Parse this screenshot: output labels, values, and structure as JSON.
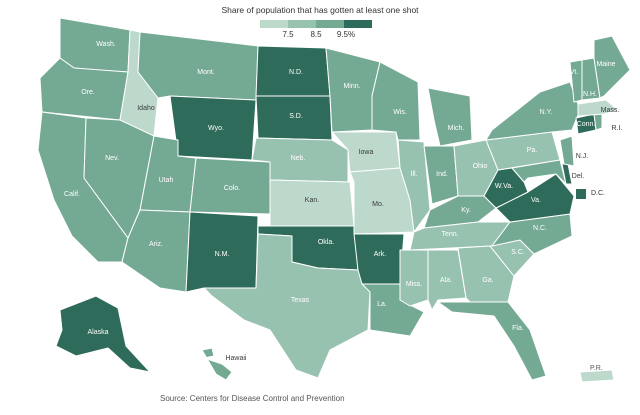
{
  "legend": {
    "title": "Share of population that has gotten at least one shot",
    "ticks": [
      "7.5",
      "8.5",
      "9.5%"
    ]
  },
  "source": "Source: Centers for Disease Control and Prevention",
  "colors": {
    "light": "#bcd9cc",
    "mid_light": "#98c2b0",
    "mid": "#74a993",
    "dark": "#2f6b5a",
    "border": "#ffffff"
  },
  "states": [
    {
      "abbr": "Wash.",
      "level": "mid"
    },
    {
      "abbr": "Ore.",
      "level": "mid"
    },
    {
      "abbr": "Calif.",
      "level": "mid"
    },
    {
      "abbr": "Idaho",
      "level": "light"
    },
    {
      "abbr": "Nev.",
      "level": "mid"
    },
    {
      "abbr": "Mont.",
      "level": "mid"
    },
    {
      "abbr": "Wyo.",
      "level": "dark"
    },
    {
      "abbr": "Utah",
      "level": "mid"
    },
    {
      "abbr": "Ariz.",
      "level": "mid"
    },
    {
      "abbr": "Colo.",
      "level": "mid"
    },
    {
      "abbr": "N.M.",
      "level": "dark"
    },
    {
      "abbr": "N.D.",
      "level": "dark"
    },
    {
      "abbr": "S.D.",
      "level": "dark"
    },
    {
      "abbr": "Neb.",
      "level": "mid_light"
    },
    {
      "abbr": "Kan.",
      "level": "light"
    },
    {
      "abbr": "Okla.",
      "level": "dark"
    },
    {
      "abbr": "Texas",
      "level": "mid_light"
    },
    {
      "abbr": "Minn.",
      "level": "mid"
    },
    {
      "abbr": "Iowa",
      "level": "light"
    },
    {
      "abbr": "Mo.",
      "level": "light"
    },
    {
      "abbr": "Ark.",
      "level": "dark"
    },
    {
      "abbr": "La.",
      "level": "mid"
    },
    {
      "abbr": "Wis.",
      "level": "mid"
    },
    {
      "abbr": "Ill.",
      "level": "mid_light"
    },
    {
      "abbr": "Mich.",
      "level": "mid"
    },
    {
      "abbr": "Ind.",
      "level": "mid"
    },
    {
      "abbr": "Ohio",
      "level": "mid_light"
    },
    {
      "abbr": "Ky.",
      "level": "mid"
    },
    {
      "abbr": "Tenn.",
      "level": "mid_light"
    },
    {
      "abbr": "Miss.",
      "level": "mid_light"
    },
    {
      "abbr": "Ala.",
      "level": "mid_light"
    },
    {
      "abbr": "Ga.",
      "level": "mid_light"
    },
    {
      "abbr": "Fla.",
      "level": "mid"
    },
    {
      "abbr": "S.C.",
      "level": "mid_light"
    },
    {
      "abbr": "N.C.",
      "level": "mid"
    },
    {
      "abbr": "Va.",
      "level": "dark"
    },
    {
      "abbr": "W.Va.",
      "level": "dark"
    },
    {
      "abbr": "Pa.",
      "level": "mid_light"
    },
    {
      "abbr": "N.Y.",
      "level": "mid"
    },
    {
      "abbr": "Vt.",
      "level": "mid"
    },
    {
      "abbr": "N.H.",
      "level": "mid"
    },
    {
      "abbr": "Maine",
      "level": "mid"
    },
    {
      "abbr": "Mass.",
      "level": "light"
    },
    {
      "abbr": "R.I.",
      "level": "mid"
    },
    {
      "abbr": "Conn.",
      "level": "dark"
    },
    {
      "abbr": "N.J.",
      "level": "mid"
    },
    {
      "abbr": "Del.",
      "level": "dark"
    },
    {
      "abbr": "Md.",
      "level": "mid"
    },
    {
      "abbr": "Alaska",
      "level": "dark"
    },
    {
      "abbr": "Hawaii",
      "level": "mid"
    },
    {
      "abbr": "P.R.",
      "level": "light"
    }
  ],
  "dc": {
    "label": "D.C.",
    "level": "dark"
  }
}
